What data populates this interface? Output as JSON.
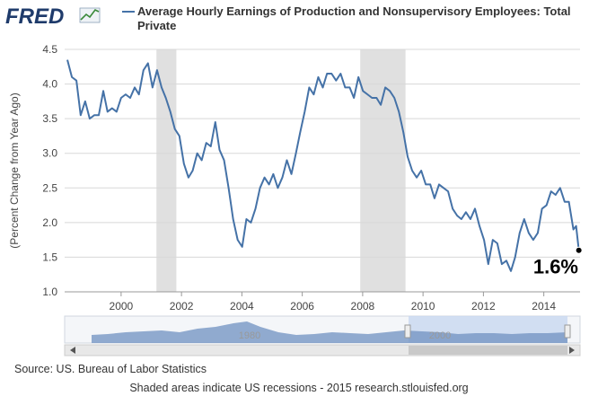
{
  "logo": "FRED",
  "chart_data": {
    "type": "line",
    "y_label": "(Percent Change from Year Ago)",
    "annotation": "1.6%",
    "grid": true,
    "recession_color": "#e0e0e0",
    "recessions": [
      [
        2001.17,
        2001.83
      ],
      [
        2007.92,
        2009.42
      ]
    ],
    "xlim": [
      1998.13,
      2015.2
    ],
    "xticks": [
      2000,
      2002,
      2004,
      2006,
      2008,
      2010,
      2012,
      2014
    ],
    "ylim": [
      1,
      4.5
    ],
    "yticks": [
      {
        "value": 1,
        "label": "1.0"
      },
      1.5,
      {
        "value": 2,
        "label": "2.0"
      },
      2.5,
      {
        "value": 3,
        "label": "3.0"
      },
      3.5,
      {
        "value": 4,
        "label": "4.0"
      },
      4.5
    ],
    "x": [
      1998.22,
      1998.37,
      1998.52,
      1998.66,
      1998.81,
      1998.96,
      1999.11,
      1999.26,
      1999.41,
      1999.55,
      1999.7,
      1999.85,
      2000.0,
      2000.15,
      2000.3,
      2000.45,
      2000.59,
      2000.74,
      2000.89,
      2001.04,
      2001.19,
      2001.34,
      2001.48,
      2001.63,
      2001.78,
      2001.93,
      2002.08,
      2002.23,
      2002.37,
      2002.52,
      2002.67,
      2002.82,
      2002.97,
      2003.12,
      2003.26,
      2003.41,
      2003.56,
      2003.71,
      2003.86,
      2004.01,
      2004.15,
      2004.3,
      2004.45,
      2004.6,
      2004.75,
      2004.9,
      2005.04,
      2005.19,
      2005.34,
      2005.49,
      2005.64,
      2005.79,
      2005.93,
      2006.08,
      2006.23,
      2006.38,
      2006.53,
      2006.68,
      2006.82,
      2006.97,
      2007.12,
      2007.27,
      2007.42,
      2007.57,
      2007.71,
      2007.86,
      2008.01,
      2008.16,
      2008.31,
      2008.46,
      2008.6,
      2008.75,
      2008.9,
      2009.05,
      2009.2,
      2009.35,
      2009.49,
      2009.64,
      2009.79,
      2009.94,
      2010.09,
      2010.24,
      2010.38,
      2010.53,
      2010.68,
      2010.83,
      2010.98,
      2011.13,
      2011.27,
      2011.42,
      2011.57,
      2011.72,
      2011.87,
      2012.02,
      2012.16,
      2012.31,
      2012.46,
      2012.61,
      2012.76,
      2012.91,
      2013.05,
      2013.2,
      2013.35,
      2013.5,
      2013.65,
      2013.8,
      2013.94,
      2014.09,
      2014.24,
      2014.39,
      2014.54,
      2014.69,
      2014.83,
      2014.98,
      2015.07,
      2015.16
    ],
    "series": [
      {
        "name": "Average Hourly Earnings of Production and Nonsupervisory Employees: Total Private",
        "color": "#4572a7",
        "values": [
          4.35,
          4.1,
          4.05,
          3.55,
          3.75,
          3.5,
          3.55,
          3.55,
          3.9,
          3.6,
          3.65,
          3.6,
          3.8,
          3.85,
          3.8,
          3.95,
          3.85,
          4.2,
          4.3,
          3.95,
          4.2,
          3.95,
          3.8,
          3.6,
          3.35,
          3.25,
          2.85,
          2.65,
          2.75,
          3.0,
          2.9,
          3.15,
          3.1,
          3.45,
          3.05,
          2.9,
          2.5,
          2.05,
          1.75,
          1.65,
          2.05,
          2.0,
          2.2,
          2.5,
          2.65,
          2.55,
          2.7,
          2.5,
          2.65,
          2.9,
          2.7,
          3.0,
          3.3,
          3.6,
          3.95,
          3.85,
          4.1,
          3.95,
          4.15,
          4.15,
          4.05,
          4.15,
          3.95,
          3.95,
          3.8,
          4.1,
          3.9,
          3.85,
          3.8,
          3.8,
          3.7,
          3.95,
          3.9,
          3.8,
          3.6,
          3.3,
          2.95,
          2.75,
          2.65,
          2.75,
          2.55,
          2.55,
          2.35,
          2.55,
          2.5,
          2.45,
          2.2,
          2.1,
          2.05,
          2.15,
          2.05,
          2.2,
          1.95,
          1.75,
          1.4,
          1.75,
          1.7,
          1.4,
          1.45,
          1.3,
          1.5,
          1.85,
          2.05,
          1.85,
          1.75,
          1.85,
          2.2,
          2.25,
          2.45,
          2.4,
          2.5,
          2.3,
          2.3,
          1.9,
          1.95,
          1.6
        ]
      }
    ]
  },
  "navigator": {
    "labels": [
      "1980",
      "2000"
    ]
  },
  "source": "Source: US. Bureau of Labor Statistics",
  "footer": "Shaded areas indicate US recessions - 2015 research.stlouisfed.org"
}
